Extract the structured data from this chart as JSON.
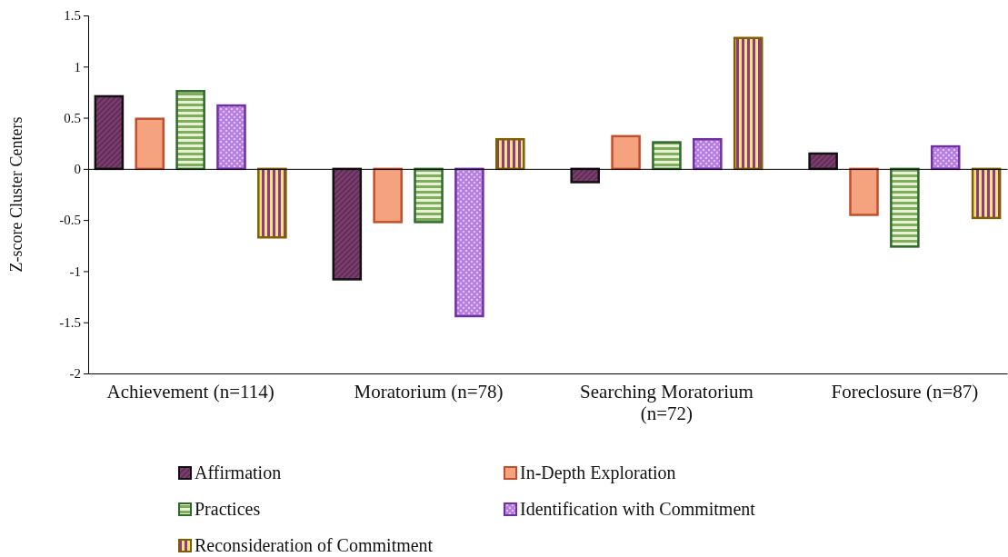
{
  "chart_data": {
    "type": "bar",
    "ylabel": "Z-score Cluster Centers",
    "categories": [
      "Achievement (n=114)",
      "Moratorium (n=78)",
      "Searching Moratorium (n=72)",
      "Foreclosure (n=87)"
    ],
    "series": [
      {
        "name": "Affirmation",
        "color": "#111111",
        "values": [
          0.71,
          -1.08,
          -0.13,
          0.15
        ]
      },
      {
        "name": "In-Depth Exploration",
        "color": "#c0502d",
        "values": [
          0.49,
          -0.52,
          0.32,
          -0.45
        ]
      },
      {
        "name": "Practices",
        "color": "#2e6b2a",
        "values": [
          0.76,
          -0.52,
          0.26,
          -0.76
        ]
      },
      {
        "name": "Identification with Commitment",
        "color": "#7030a0",
        "values": [
          0.62,
          -1.44,
          0.29,
          0.22
        ]
      },
      {
        "name": "Reconsideration of Commitment",
        "color": "#7f6000",
        "values": [
          -0.67,
          0.29,
          1.28,
          -0.48
        ]
      }
    ],
    "ylim": [
      -2,
      1.5
    ],
    "yticks": [
      -2,
      -1.5,
      -1,
      -0.5,
      0,
      0.5,
      1,
      1.5
    ],
    "legend": "bottom"
  }
}
